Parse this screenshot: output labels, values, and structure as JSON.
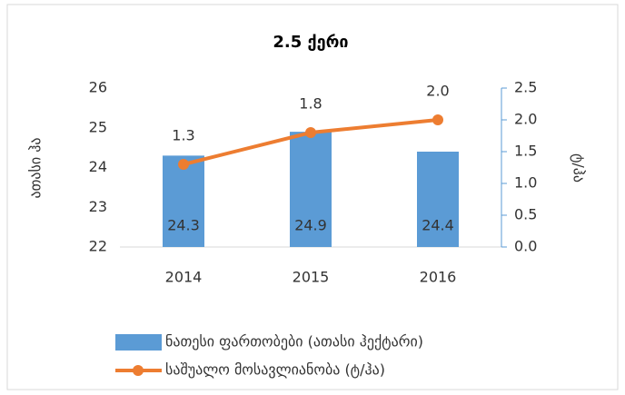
{
  "chart_data": {
    "type": "bar",
    "title": "2.5 ქერი",
    "y_label": "ათასი ჰა",
    "y2_label": "ტ/ჰა",
    "categories": [
      "2014",
      "2015",
      "2016"
    ],
    "series": [
      {
        "name": "ნათესი ფართობები (ათასი ჰექტარი)",
        "type": "bar",
        "color": "#5b9bd5",
        "values": [
          24.3,
          24.9,
          24.4
        ]
      },
      {
        "name": "საშუალო მოსავლიანობა (ტ/ჰა)",
        "type": "line",
        "axis": "y2",
        "color": "#ed7d31",
        "values": [
          1.3,
          1.8,
          2.0
        ],
        "value_labels": [
          "1.3",
          "1.8",
          "2.0"
        ]
      }
    ],
    "ylim": [
      22,
      26
    ],
    "yticks": [
      22,
      23,
      24,
      25,
      26
    ],
    "y2lim": [
      0,
      2.5
    ],
    "y2ticks": [
      {
        "value": 0,
        "label": "0.0"
      },
      0.5,
      {
        "value": 1,
        "label": "1.0"
      },
      1.5,
      {
        "value": 2,
        "label": "2.0"
      },
      2.5
    ],
    "y2_axis_color": "#5b9bd5"
  }
}
